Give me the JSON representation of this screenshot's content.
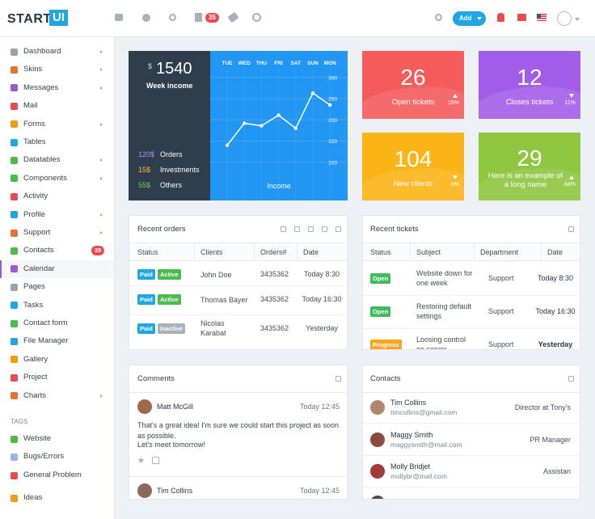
{
  "header": {
    "logo": "START",
    "logo_box": "UI",
    "badge": "35",
    "add_button": "Add"
  },
  "sidebar": {
    "menu": [
      "Dashboard",
      "Skins",
      "Messages",
      "Mail",
      "Forms",
      "Tables",
      "Datatables",
      "Components",
      "Activity",
      "Profile",
      "Support",
      "Contacts",
      "Calendar",
      "Pages",
      "Tasks",
      "Contact form",
      "File Manager",
      "Gallery",
      "Project",
      "Charts"
    ],
    "contacts_badge": "35",
    "tags_title": "TAGS",
    "tags": [
      "Website",
      "Bugs/Errors",
      "General Problem",
      "Ideas"
    ]
  },
  "chart_data": {
    "type": "line",
    "currency": "$",
    "amount": "1540",
    "subtitle": "Week income",
    "legend": [
      {
        "amount": "120$",
        "label": "Orders"
      },
      {
        "amount": "15$",
        "label": "Investments"
      },
      {
        "amount": "55$",
        "label": "Others"
      }
    ],
    "x_label": "Income",
    "categories": [
      "TUE",
      "WED",
      "THU",
      "FRI",
      "SAT",
      "SUN",
      "MON"
    ],
    "values": [
      140,
      192,
      186,
      211,
      180,
      263,
      235
    ],
    "color": "#ffffff",
    "ylim": [
      10,
      350
    ],
    "yticks": [
      100,
      150,
      200,
      250,
      300
    ],
    "grid": true
  },
  "stats": [
    {
      "value": "26",
      "label": "Open tickets",
      "change": "15%"
    },
    {
      "value": "12",
      "label": "Closes tickets",
      "change": "11%"
    },
    {
      "value": "104",
      "label": "New clients",
      "change": "5%"
    },
    {
      "value": "29",
      "label": "Here is an example of a long name",
      "change": "84%"
    }
  ],
  "recent_orders": {
    "title": "Recent orders",
    "columns": [
      "Status",
      "Clients",
      "Orders#",
      "Date"
    ],
    "rows": [
      {
        "status": [
          "Paid",
          "Active"
        ],
        "client": "John Doe",
        "order": "3435362",
        "date": "Today 8:30"
      },
      {
        "status": [
          "Paid",
          "Active"
        ],
        "client": "Thomas Bayer",
        "order": "3435362",
        "date": "Today 16:30"
      },
      {
        "status": [
          "Paid",
          "Inactive"
        ],
        "client": "Nicolas Karabat",
        "order": "3435362",
        "date": "Yesterday"
      }
    ]
  },
  "recent_tickets": {
    "title": "Recent tickets",
    "columns": [
      "Status",
      "Subject",
      "Department",
      "Date"
    ],
    "rows": [
      {
        "status": "Open",
        "subject": "Website down for one week",
        "department": "Support",
        "date": "Today 8:30"
      },
      {
        "status": "Open",
        "subject": "Restoring default settings",
        "department": "Support",
        "date": "Today 16:30"
      },
      {
        "status": "Progress",
        "subject": "Loosing control on server",
        "department": "Support",
        "date": "Yesterday"
      }
    ]
  },
  "comments": {
    "title": "Comments",
    "items": [
      {
        "name": "Matt McGill",
        "date": "Today 12:45",
        "text": [
          "That's a great idea! I'm sure we could start this project as soon as possible.",
          "Let's meet tomorrow!"
        ]
      },
      {
        "name": "Tim Collins",
        "date": "Today 12:45"
      }
    ]
  },
  "contacts": {
    "title": "Contacts",
    "items": [
      {
        "name": "Tim Collins",
        "email": "timcollins@gmail.com",
        "role": "Director at Tony's"
      },
      {
        "name": "Maggy Smith",
        "email": "maggysmith@mail.com",
        "role": "PR Manager"
      },
      {
        "name": "Molly Bridjet",
        "email": "mollybr@mail.com",
        "role": "Assistan"
      }
    ]
  }
}
